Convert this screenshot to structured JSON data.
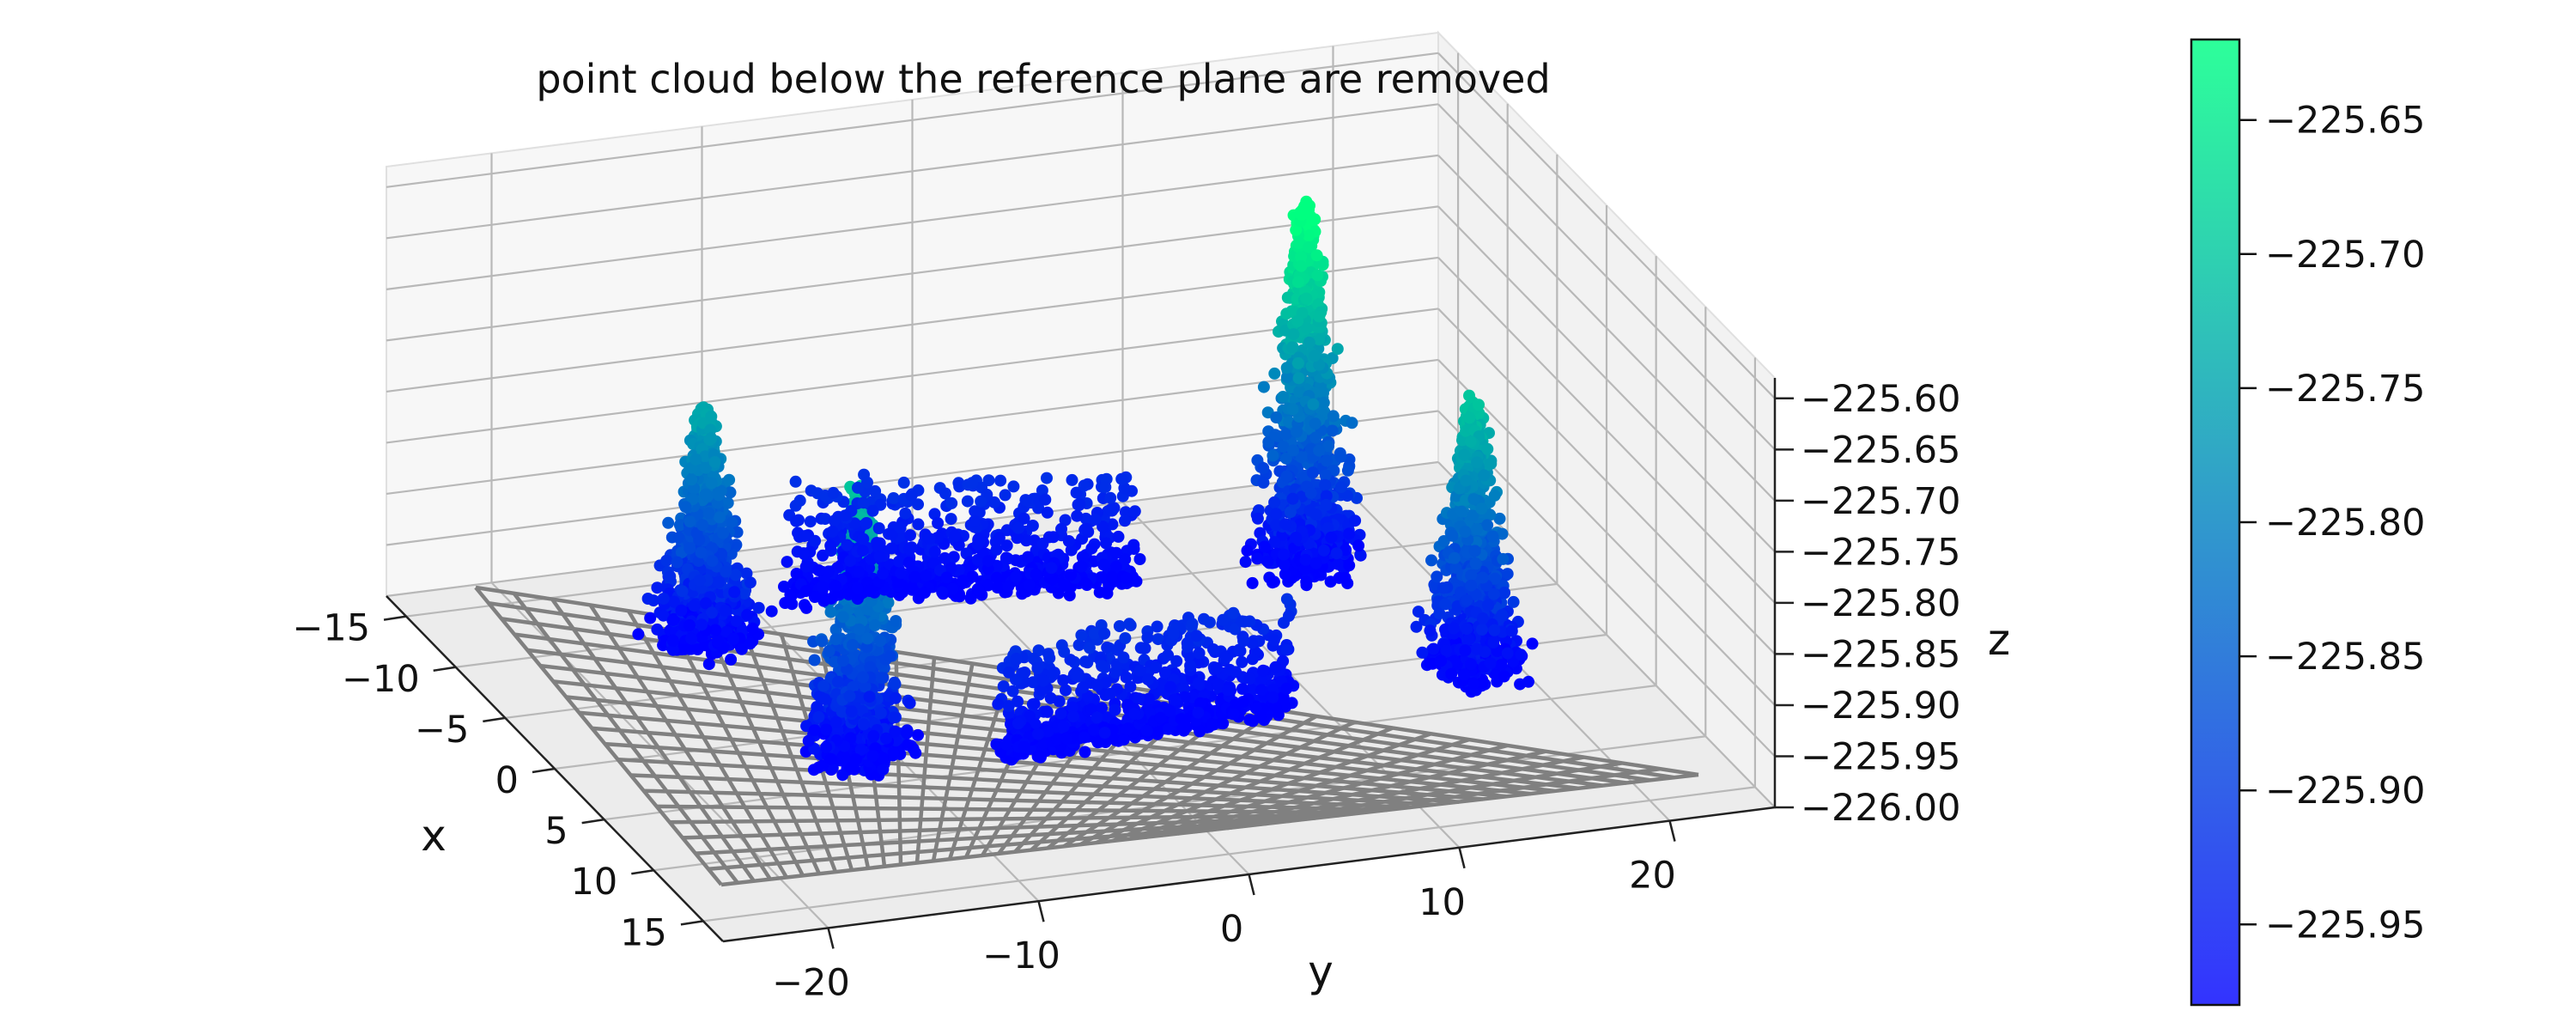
{
  "chart_data": {
    "type": "scatter",
    "title": "point cloud below the reference plane are removed",
    "xlabel": "x",
    "ylabel": "y",
    "zlabel": "z",
    "xlim": [
      -17,
      17
    ],
    "ylim": [
      -25,
      25
    ],
    "zlim": [
      -226.0,
      -225.58
    ],
    "x_ticks": [
      -15,
      -10,
      -5,
      0,
      5,
      10,
      15
    ],
    "y_ticks": [
      -20,
      -10,
      0,
      10,
      20
    ],
    "z_ticks": [
      -225.6,
      -225.65,
      -225.7,
      -225.75,
      -225.8,
      -225.85,
      -225.9,
      -225.95,
      -226.0
    ],
    "z_tick_labels": [
      "−225.60",
      "−225.65",
      "−225.70",
      "−225.75",
      "−225.80",
      "−225.85",
      "−225.90",
      "−225.95",
      "−226.00"
    ],
    "reference_plane": {
      "z": -226.0,
      "style": "wireframe grid",
      "color": "#808080"
    },
    "colormap": {
      "name": "winter",
      "low_color": "#0000ff",
      "high_color": "#00ff80"
    },
    "colorbar": {
      "range": [
        -225.98,
        -225.62
      ],
      "ticks": [
        -225.65,
        -225.7,
        -225.75,
        -225.8,
        -225.85,
        -225.9,
        -225.95
      ],
      "tick_labels": [
        "−225.65",
        "−225.70",
        "−225.75",
        "−225.80",
        "−225.85",
        "−225.90",
        "−225.95"
      ]
    },
    "clusters": [
      {
        "kind": "peak",
        "x": 14,
        "y": -22,
        "peak_z": -225.72
      },
      {
        "kind": "peak",
        "x": 14,
        "y": 18,
        "peak_z": -225.62
      },
      {
        "kind": "peak",
        "x": -13,
        "y": -20,
        "peak_z": -225.76
      },
      {
        "kind": "peak",
        "x": -11,
        "y": 20,
        "peak_z": -225.72
      },
      {
        "kind": "ridge",
        "x_from": 14,
        "y_from": -12,
        "x_to": 14,
        "y_to": 8,
        "peak_z": -225.93
      },
      {
        "kind": "ridge",
        "x_from": -13,
        "y_from": -10,
        "x_to": -12,
        "y_to": 10,
        "peak_z": -225.93
      }
    ],
    "grid": true
  }
}
